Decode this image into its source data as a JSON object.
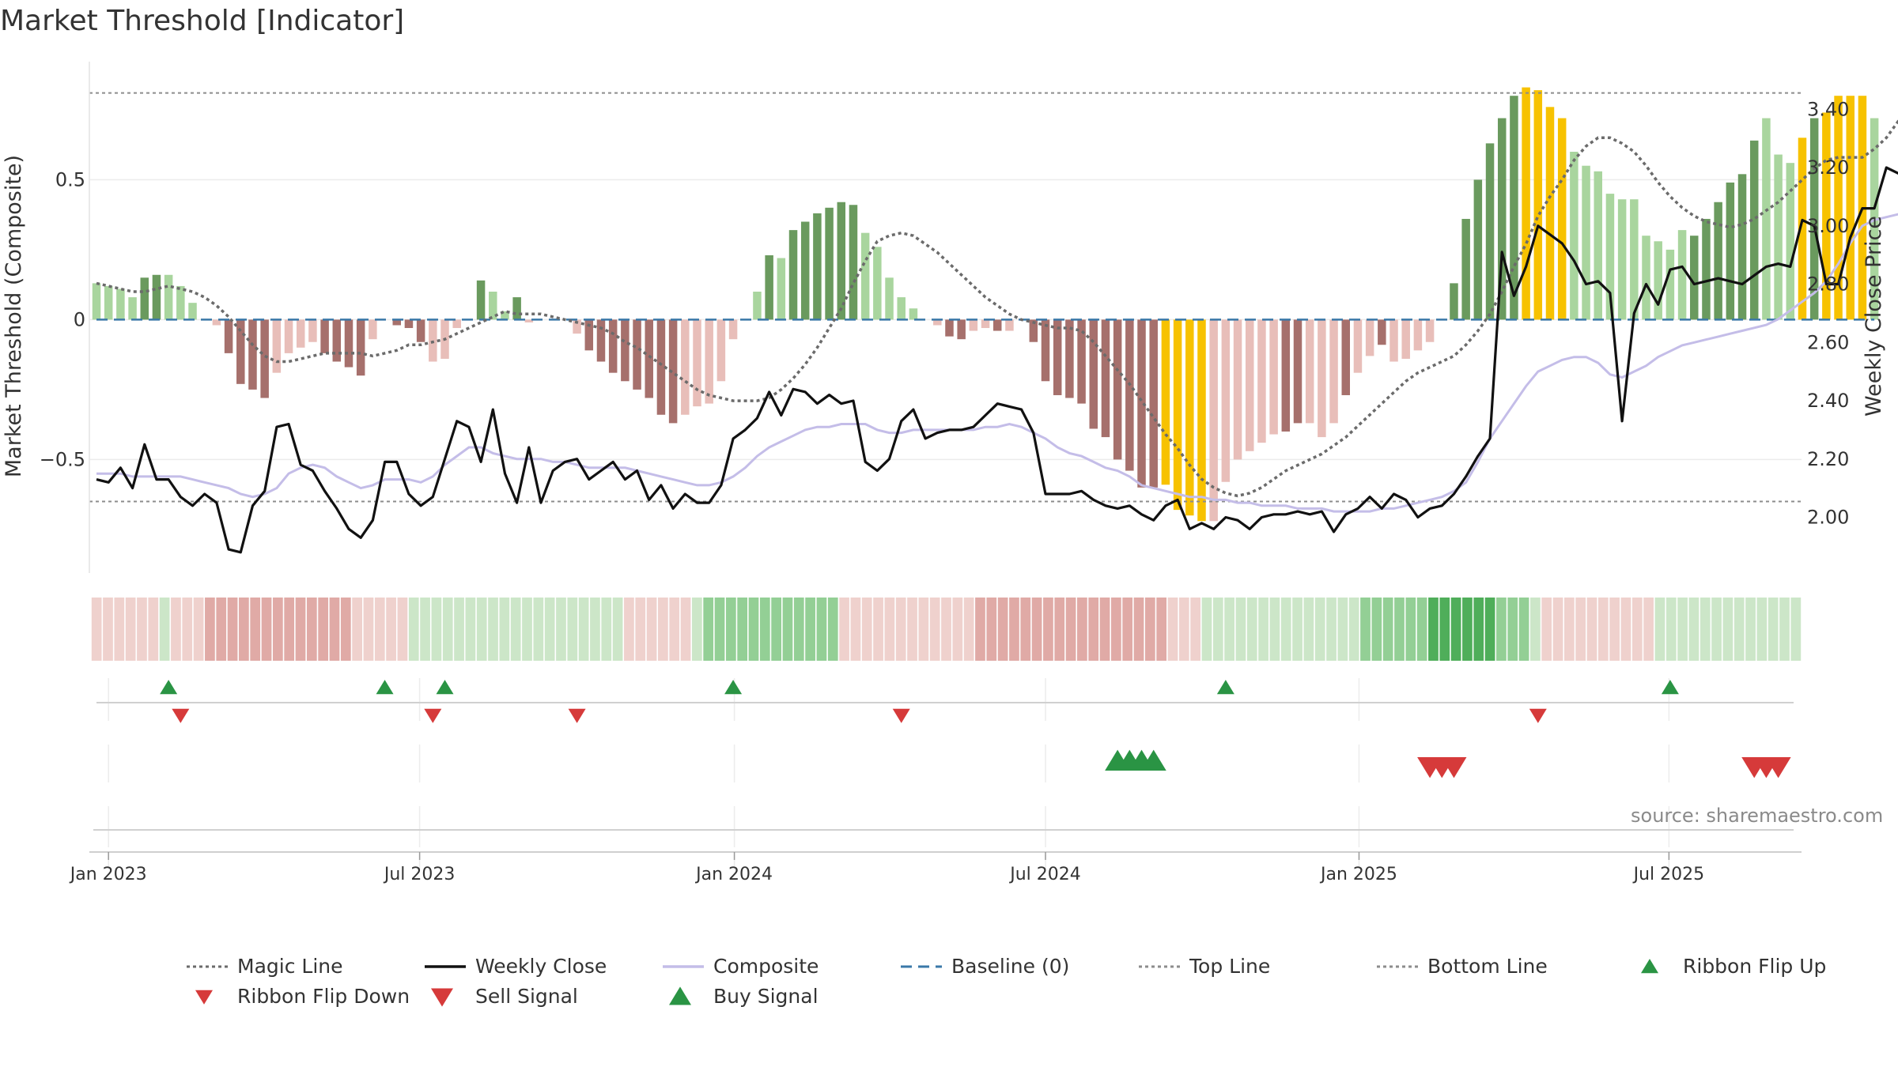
{
  "title": "Market Threshold [Indicator]",
  "source": "source: sharemaestro.com",
  "colors": {
    "bar_dark_green": "#6a9a5e",
    "bar_light_green": "#a9d59e",
    "bar_dark_red": "#a6706c",
    "bar_light_red": "#e8beb9",
    "bar_gold": "#f7c200",
    "magic_line": "#6b6b6b",
    "weekly_close": "#111111",
    "composite": "#c4bde8",
    "baseline": "#3a78a8",
    "threshold_line": "#8c8c8c",
    "buy": "#2a9444",
    "sell": "#d63a3a"
  },
  "legend": [
    {
      "key": "magic",
      "label": "Magic Line",
      "style": "dotted",
      "color": "#6b6b6b"
    },
    {
      "key": "close",
      "label": "Weekly Close",
      "style": "solid",
      "color": "#111111"
    },
    {
      "key": "composite",
      "label": "Composite",
      "style": "solid",
      "color": "#c4bde8"
    },
    {
      "key": "baseline",
      "label": "Baseline (0)",
      "style": "dashed",
      "color": "#3a78a8"
    },
    {
      "key": "top",
      "label": "Top Line",
      "style": "dotted",
      "color": "#8c8c8c"
    },
    {
      "key": "bottom",
      "label": "Bottom Line",
      "style": "dotted",
      "color": "#8c8c8c"
    },
    {
      "key": "flip_up",
      "label": "Ribbon Flip Up",
      "style": "tri-up",
      "color": "#2a9444"
    },
    {
      "key": "flip_down",
      "label": "Ribbon Flip Down",
      "style": "tri-down",
      "color": "#d63a3a"
    },
    {
      "key": "sell",
      "label": "Sell Signal",
      "style": "tri-down",
      "color": "#d63a3a"
    },
    {
      "key": "buy",
      "label": "Buy Signal",
      "style": "tri-up",
      "color": "#2a9444"
    }
  ],
  "chart_data": {
    "type": "bar",
    "title": "Market Threshold [Indicator]",
    "ylabel": "Market Threshold (Composite)",
    "ylabel_right": "Weekly Close Price",
    "ylim": [
      -0.9,
      0.93
    ],
    "ylim_right": [
      1.8,
      3.64
    ],
    "yticks": [
      {
        "v": 0.5,
        "label": "0.5"
      },
      {
        "v": 0,
        "label": "0"
      },
      {
        "v": -0.5,
        "label": "−0.5"
      }
    ],
    "yticks_right": [
      "2.00",
      "2.20",
      "2.40",
      "2.60",
      "2.80",
      "3.00",
      "3.20",
      "3.40"
    ],
    "x_ticks": [
      {
        "week": 1.0,
        "label": "Jan 2023"
      },
      {
        "week": 26.9,
        "label": "Jul 2023"
      },
      {
        "week": 53.1,
        "label": "Jan 2024"
      },
      {
        "week": 79.0,
        "label": "Jul 2024"
      },
      {
        "week": 105.1,
        "label": "Jan 2025"
      },
      {
        "week": 130.9,
        "label": "Jul 2025"
      }
    ],
    "top_line": 0.81,
    "bottom_line": -0.65,
    "composite_bars": [
      0.13,
      0.12,
      0.11,
      0.08,
      0.15,
      0.16,
      0.16,
      0.12,
      0.06,
      0.0,
      -0.02,
      -0.12,
      -0.23,
      -0.25,
      -0.28,
      -0.19,
      -0.12,
      -0.1,
      -0.08,
      -0.12,
      -0.15,
      -0.17,
      -0.2,
      -0.07,
      -0.0,
      -0.02,
      -0.03,
      -0.08,
      -0.15,
      -0.14,
      -0.03,
      0.0,
      0.14,
      0.1,
      0.03,
      0.08,
      -0.01,
      0.0,
      -0.0,
      -0.0,
      -0.05,
      -0.11,
      -0.15,
      -0.19,
      -0.22,
      -0.25,
      -0.28,
      -0.34,
      -0.37,
      -0.34,
      -0.31,
      -0.3,
      -0.22,
      -0.07,
      0.0,
      0.1,
      0.23,
      0.22,
      0.32,
      0.35,
      0.38,
      0.4,
      0.42,
      0.41,
      0.31,
      0.26,
      0.15,
      0.08,
      0.04,
      0.0,
      -0.02,
      -0.06,
      -0.07,
      -0.04,
      -0.03,
      -0.04,
      -0.04,
      0.0,
      -0.08,
      -0.22,
      -0.27,
      -0.28,
      -0.3,
      -0.39,
      -0.42,
      -0.5,
      -0.54,
      -0.6,
      -0.6,
      -0.59,
      -0.68,
      -0.7,
      -0.72,
      -0.72,
      -0.58,
      -0.5,
      -0.47,
      -0.44,
      -0.41,
      -0.4,
      -0.37,
      -0.37,
      -0.42,
      -0.37,
      -0.27,
      -0.19,
      -0.13,
      -0.09,
      -0.15,
      -0.14,
      -0.11,
      -0.08,
      0.0,
      0.13,
      0.36,
      0.5,
      0.63,
      0.72,
      0.8,
      0.83,
      0.82,
      0.76,
      0.72,
      0.6,
      0.55,
      0.53,
      0.45,
      0.43,
      0.43,
      0.3,
      0.28,
      0.25,
      0.32,
      0.3,
      0.36,
      0.42,
      0.49,
      0.52,
      0.64,
      0.72,
      0.59,
      0.56,
      0.65,
      0.72,
      0.74,
      0.8,
      0.8,
      0.8,
      0.72
    ],
    "bar_colors": [
      "lg",
      "lg",
      "lg",
      "lg",
      "dg",
      "dg",
      "lg",
      "lg",
      "lg",
      "lr",
      "lr",
      "dr",
      "dr",
      "dr",
      "dr",
      "lr",
      "lr",
      "lr",
      "lr",
      "dr",
      "dr",
      "dr",
      "dr",
      "lr",
      "lr",
      "dr",
      "dr",
      "dr",
      "lr",
      "lr",
      "lr",
      "dg",
      "dg",
      "lg",
      "lg",
      "dg",
      "lr",
      "lr",
      "lr",
      "lr",
      "lr",
      "dr",
      "dr",
      "dr",
      "dr",
      "dr",
      "dr",
      "dr",
      "dr",
      "lr",
      "lr",
      "lr",
      "lr",
      "lr",
      "lr",
      "lg",
      "dg",
      "lg",
      "dg",
      "dg",
      "dg",
      "dg",
      "dg",
      "dg",
      "lg",
      "lg",
      "lg",
      "lg",
      "lg",
      "lr",
      "lr",
      "dr",
      "dr",
      "lr",
      "lr",
      "dr",
      "lr",
      "lr",
      "dr",
      "dr",
      "dr",
      "dr",
      "dr",
      "dr",
      "dr",
      "dr",
      "dr",
      "dr",
      "dr",
      "gold",
      "gold",
      "gold",
      "gold",
      "lr",
      "lr",
      "lr",
      "lr",
      "lr",
      "lr",
      "dr",
      "dr",
      "lr",
      "lr",
      "lr",
      "dr",
      "lr",
      "lr",
      "dr",
      "lr",
      "lr",
      "lr",
      "lr",
      "lg",
      "dg",
      "dg",
      "dg",
      "dg",
      "dg",
      "dg",
      "gold",
      "gold",
      "gold",
      "gold",
      "lg",
      "lg",
      "lg",
      "lg",
      "lg",
      "lg",
      "lg",
      "lg",
      "lg",
      "lg",
      "dg",
      "dg",
      "dg",
      "dg",
      "dg",
      "dg",
      "lg",
      "lg",
      "lg",
      "gold",
      "dg",
      "gold",
      "gold",
      "gold",
      "gold",
      "lg"
    ],
    "series": [
      {
        "name": "Weekly Close",
        "axis": "right",
        "values": [
          2.13,
          2.12,
          2.17,
          2.1,
          2.25,
          2.13,
          2.13,
          2.07,
          2.04,
          2.08,
          2.05,
          1.89,
          1.88,
          2.04,
          2.09,
          2.31,
          2.32,
          2.18,
          2.16,
          2.09,
          2.03,
          1.96,
          1.93,
          1.99,
          2.19,
          2.19,
          2.08,
          2.04,
          2.07,
          2.2,
          2.33,
          2.31,
          2.19,
          2.37,
          2.15,
          2.05,
          2.24,
          2.05,
          2.16,
          2.19,
          2.2,
          2.13,
          2.16,
          2.19,
          2.13,
          2.16,
          2.06,
          2.11,
          2.03,
          2.08,
          2.05,
          2.05,
          2.11,
          2.27,
          2.3,
          2.34,
          2.43,
          2.35,
          2.44,
          2.43,
          2.39,
          2.42,
          2.39,
          2.4,
          2.19,
          2.16,
          2.2,
          2.33,
          2.37,
          2.27,
          2.29,
          2.3,
          2.3,
          2.31,
          2.35,
          2.39,
          2.38,
          2.37,
          2.29,
          2.08,
          2.08,
          2.08,
          2.09,
          2.06,
          2.04,
          2.03,
          2.04,
          2.01,
          1.99,
          2.04,
          2.06,
          1.96,
          1.98,
          1.96,
          2.0,
          1.99,
          1.96,
          2.0,
          2.01,
          2.01,
          2.02,
          2.01,
          2.02,
          1.95,
          2.01,
          2.03,
          2.07,
          2.03,
          2.08,
          2.06,
          2.0,
          2.03,
          2.04,
          2.08,
          2.14,
          2.21,
          2.27,
          2.91,
          2.76,
          2.86,
          3.0,
          2.97,
          2.94,
          2.88,
          2.8,
          2.81,
          2.77,
          2.33,
          2.7,
          2.8,
          2.73,
          2.85,
          2.86,
          2.8,
          2.81,
          2.82,
          2.81,
          2.8,
          2.83,
          2.86,
          2.87,
          2.86,
          3.02,
          3.0,
          2.8,
          2.8,
          2.96,
          3.06,
          3.06,
          3.2,
          3.18,
          3.19,
          3.23,
          3.18,
          3.06
        ]
      },
      {
        "name": "Composite",
        "axis": "right",
        "values": [
          2.15,
          2.15,
          2.15,
          2.14,
          2.14,
          2.14,
          2.14,
          2.14,
          2.13,
          2.12,
          2.11,
          2.1,
          2.08,
          2.07,
          2.08,
          2.1,
          2.15,
          2.17,
          2.18,
          2.17,
          2.14,
          2.12,
          2.1,
          2.11,
          2.13,
          2.13,
          2.13,
          2.12,
          2.14,
          2.18,
          2.21,
          2.24,
          2.24,
          2.22,
          2.21,
          2.2,
          2.2,
          2.2,
          2.19,
          2.19,
          2.18,
          2.17,
          2.17,
          2.17,
          2.17,
          2.16,
          2.15,
          2.14,
          2.13,
          2.12,
          2.11,
          2.11,
          2.12,
          2.14,
          2.17,
          2.21,
          2.24,
          2.26,
          2.28,
          2.3,
          2.31,
          2.31,
          2.32,
          2.32,
          2.32,
          2.3,
          2.29,
          2.29,
          2.3,
          2.3,
          2.3,
          2.3,
          2.3,
          2.3,
          2.31,
          2.31,
          2.32,
          2.31,
          2.29,
          2.27,
          2.24,
          2.22,
          2.21,
          2.19,
          2.17,
          2.16,
          2.14,
          2.11,
          2.1,
          2.09,
          2.08,
          2.07,
          2.07,
          2.06,
          2.06,
          2.05,
          2.05,
          2.04,
          2.04,
          2.04,
          2.03,
          2.03,
          2.03,
          2.02,
          2.02,
          2.02,
          2.02,
          2.03,
          2.03,
          2.04,
          2.05,
          2.06,
          2.07,
          2.09,
          2.12,
          2.19,
          2.27,
          2.33,
          2.39,
          2.45,
          2.5,
          2.52,
          2.54,
          2.55,
          2.55,
          2.53,
          2.49,
          2.48,
          2.5,
          2.52,
          2.55,
          2.57,
          2.59,
          2.6,
          2.61,
          2.62,
          2.63,
          2.64,
          2.65,
          2.66,
          2.68,
          2.71,
          2.74,
          2.77,
          2.81,
          2.87,
          2.94,
          3.0,
          3.02,
          3.03,
          3.04
        ]
      },
      {
        "name": "Magic Line",
        "axis": "left",
        "values": [
          0.13,
          0.12,
          0.11,
          0.1,
          0.1,
          0.11,
          0.12,
          0.11,
          0.1,
          0.08,
          0.05,
          0.01,
          -0.04,
          -0.09,
          -0.13,
          -0.15,
          -0.15,
          -0.14,
          -0.13,
          -0.12,
          -0.12,
          -0.12,
          -0.12,
          -0.13,
          -0.12,
          -0.11,
          -0.09,
          -0.09,
          -0.08,
          -0.07,
          -0.05,
          -0.03,
          -0.01,
          0.01,
          0.03,
          0.02,
          0.02,
          0.02,
          0.01,
          0.0,
          -0.01,
          -0.02,
          -0.03,
          -0.05,
          -0.08,
          -0.1,
          -0.13,
          -0.16,
          -0.19,
          -0.22,
          -0.25,
          -0.27,
          -0.28,
          -0.29,
          -0.29,
          -0.29,
          -0.28,
          -0.25,
          -0.21,
          -0.16,
          -0.1,
          -0.03,
          0.04,
          0.13,
          0.21,
          0.28,
          0.3,
          0.31,
          0.3,
          0.27,
          0.24,
          0.2,
          0.16,
          0.12,
          0.08,
          0.05,
          0.02,
          0.0,
          -0.01,
          -0.02,
          -0.03,
          -0.03,
          -0.04,
          -0.08,
          -0.13,
          -0.18,
          -0.23,
          -0.29,
          -0.35,
          -0.41,
          -0.46,
          -0.52,
          -0.57,
          -0.6,
          -0.62,
          -0.63,
          -0.62,
          -0.6,
          -0.57,
          -0.54,
          -0.52,
          -0.5,
          -0.48,
          -0.45,
          -0.42,
          -0.38,
          -0.34,
          -0.3,
          -0.26,
          -0.22,
          -0.19,
          -0.17,
          -0.15,
          -0.13,
          -0.09,
          -0.04,
          0.02,
          0.1,
          0.19,
          0.27,
          0.37,
          0.44,
          0.5,
          0.57,
          0.62,
          0.65,
          0.65,
          0.63,
          0.6,
          0.55,
          0.49,
          0.44,
          0.4,
          0.37,
          0.35,
          0.34,
          0.33,
          0.34,
          0.36,
          0.39,
          0.42,
          0.46,
          0.5,
          0.54,
          0.57,
          0.58,
          0.58,
          0.58,
          0.61,
          0.65,
          0.71,
          0.74,
          0.74
        ]
      }
    ],
    "ribbon": [
      "lr",
      "lr",
      "lr",
      "lr",
      "lr",
      "lr",
      "lg",
      "lr",
      "lr",
      "lr",
      "mr",
      "mr",
      "mr",
      "mr",
      "mr",
      "mr",
      "mr",
      "mr",
      "mr",
      "mr",
      "mr",
      "mr",
      "mr",
      "lr",
      "lr",
      "lr",
      "lr",
      "lr",
      "lg",
      "lg",
      "lg",
      "lg",
      "lg",
      "lg",
      "lg",
      "lg",
      "lg",
      "lg",
      "lg",
      "lg",
      "lg",
      "lg",
      "lg",
      "lg",
      "lg",
      "lg",
      "lg",
      "lr",
      "lr",
      "lr",
      "lr",
      "lr",
      "lr",
      "lg",
      "mg",
      "mg",
      "mg",
      "mg",
      "mg",
      "mg",
      "mg",
      "mg",
      "mg",
      "mg",
      "mg",
      "mg",
      "lr",
      "lr",
      "lr",
      "lr",
      "lr",
      "lr",
      "lr",
      "lr",
      "lr",
      "lr",
      "lr",
      "lr",
      "mr",
      "mr",
      "mr",
      "mr",
      "mr",
      "mr",
      "mr",
      "mr",
      "mr",
      "mr",
      "mr",
      "mr",
      "mr",
      "mr",
      "mr",
      "mr",
      "mr",
      "lr",
      "lr",
      "lr",
      "lg",
      "lg",
      "lg",
      "lg",
      "lg",
      "lg",
      "lg",
      "lg",
      "lg",
      "lg",
      "lg",
      "lg",
      "lg",
      "lg",
      "mg",
      "mg",
      "mg",
      "mg",
      "mg",
      "mg",
      "dg",
      "dg",
      "dg",
      "dg",
      "dg",
      "dg",
      "mg",
      "mg",
      "mg",
      "lg",
      "lr",
      "lr",
      "lr",
      "lr",
      "lr",
      "lr",
      "lr",
      "lr",
      "lr",
      "lr",
      "lg",
      "lg",
      "lg",
      "lg",
      "lg",
      "lg",
      "lg",
      "lg",
      "lg",
      "lg",
      "lg",
      "lg",
      "lg"
    ],
    "ribbon_colors": {
      "lr": "#efd1cd",
      "mr": "#e0aaa6",
      "lg": "#cce6c8",
      "mg": "#93cf95",
      "dg": "#4fae5a"
    },
    "ribbon_flip_up_weeks": [
      6,
      24,
      29,
      53,
      94,
      131
    ],
    "ribbon_flip_down_weeks": [
      7,
      28,
      40,
      67,
      120
    ],
    "buy_signal_weeks": [
      85,
      86,
      87,
      88
    ],
    "sell_signal_weeks": [
      111,
      112,
      113,
      138,
      139,
      140
    ]
  }
}
